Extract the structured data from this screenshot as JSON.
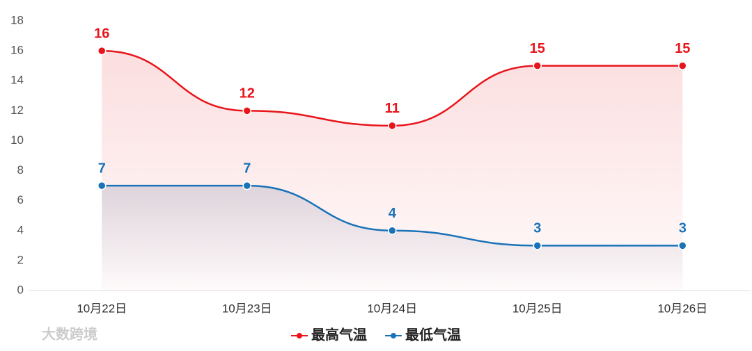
{
  "chart_data": {
    "type": "line",
    "categories": [
      "10月22日",
      "10月23日",
      "10月24日",
      "10月25日",
      "10月26日"
    ],
    "series": [
      {
        "name": "最高气温",
        "color": "#e8151b",
        "values": [
          16,
          12,
          11,
          15,
          15
        ]
      },
      {
        "name": "最低气温",
        "color": "#1a72b8",
        "values": [
          7,
          7,
          4,
          3,
          3
        ]
      }
    ],
    "ylim": [
      0,
      18
    ],
    "yticks": [
      0,
      2,
      4,
      6,
      8,
      10,
      12,
      14,
      16,
      18
    ],
    "smooth": true,
    "area": true,
    "legend": "bottom",
    "watermark": "大数跨境"
  }
}
